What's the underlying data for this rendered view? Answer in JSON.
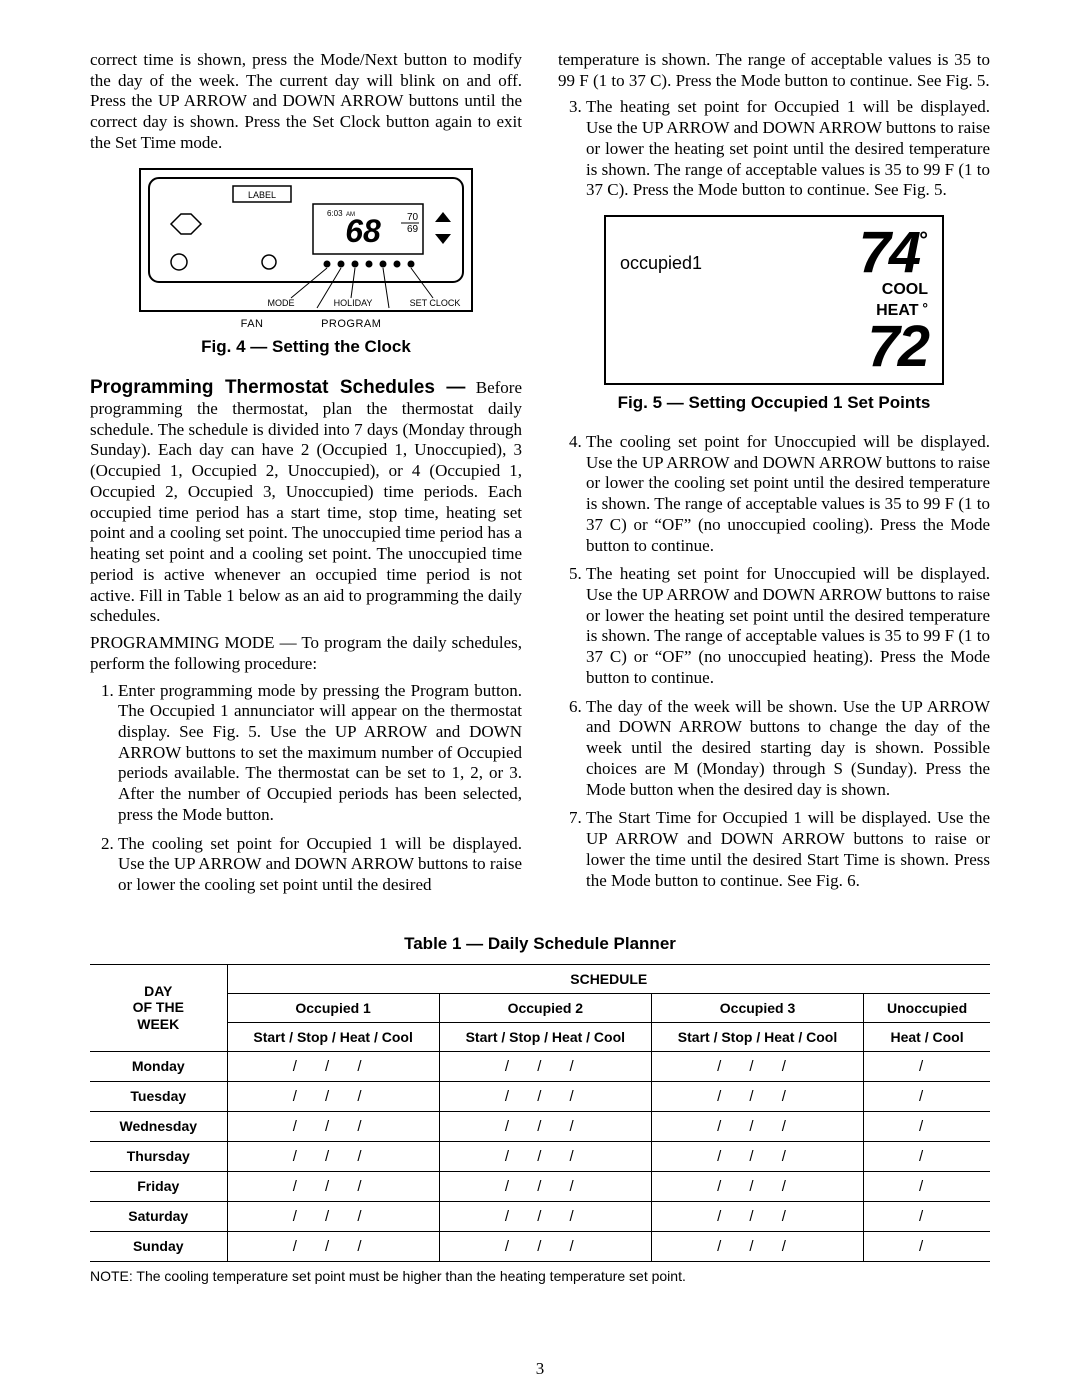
{
  "left_col": {
    "intro_para": "correct time is shown, press the Mode/Next button to modify the day of the week. The current day will blink on and off. Press the UP ARROW and DOWN ARROW buttons until the correct day is shown. Press the Set Clock button again to exit the Set Time mode.",
    "fig4": {
      "label_text": "LABEL",
      "time_text": "6:03",
      "am_text": "AM",
      "temp_text": "68",
      "temp_small": "70\n69",
      "btn_labels": [
        "MODE",
        "HOLIDAY",
        "SET CLOCK"
      ],
      "btn_labels2": [
        "FAN",
        "PROGRAM"
      ],
      "caption": "Fig. 4 — Setting the Clock"
    },
    "prog_head": "Programming Thermostat Schedules —",
    "prog_para": "Before programming the thermostat, plan the thermostat daily schedule. The schedule is divided into 7 days (Monday through Sunday). Each day can have 2 (Occupied 1, Unoccupied), 3 (Occupied 1, Occupied 2, Unoccupied), or 4 (Occupied 1, Occupied 2, Occupied 3, Unoccupied) time periods. Each occupied time period has a start time, stop time, heating set point and a cooling set point. The unoccupied time period has a heating set point and a cooling set point. The unoccupied time period is active whenever an occupied time period is not active. Fill in Table 1 below as an aid to programming the daily schedules.",
    "progmode_para": "PROGRAMMING MODE — To program the daily schedules, perform the following procedure:",
    "step1": "Enter programming mode by pressing the Program button. The Occupied 1 annunciator will appear on the thermostat display. See Fig. 5. Use the UP ARROW and DOWN ARROW buttons to set the maximum number of Occupied periods available. The thermostat can be set to 1, 2, or 3. After the number of Occupied periods has been selected, press the Mode button.",
    "step2": "The cooling set point for Occupied 1 will be displayed. Use the UP ARROW and DOWN ARROW buttons to raise or lower the cooling set point until the desired"
  },
  "right_col": {
    "cont_para": "temperature is shown. The range of acceptable values is 35 to 99 F (1 to 37 C). Press the Mode button to continue. See Fig. 5.",
    "step3": "The heating set point for Occupied 1 will be displayed. Use the UP ARROW and DOWN ARROW buttons to raise or lower the heating set point until the desired temperature is shown. The range of acceptable values is 35 to 99 F (1 to 37 C). Press the Mode button to continue. See Fig. 5.",
    "fig5": {
      "occ_label": "occupied1",
      "cool_temp": "74",
      "cool_label": "Cool",
      "heat_temp": "72",
      "heat_label": "Heat",
      "caption": "Fig. 5 — Setting Occupied 1 Set Points"
    },
    "step4": "The cooling set point for Unoccupied will be displayed. Use the UP ARROW and DOWN ARROW buttons to raise or lower the cooling set point until the desired temperature is shown. The range of acceptable values is 35 to 99 F (1 to 37 C) or “OF” (no unoccupied cooling). Press the Mode button to continue.",
    "step5": "The heating set point for Unoccupied will be displayed. Use the UP ARROW and DOWN ARROW buttons to raise or lower the heating set point until the desired temperature is shown. The range of acceptable values is 35 to 99 F (1 to 37 C) or “OF” (no unoccupied heating). Press the Mode button to continue.",
    "step6": "The day of the week will be shown. Use the UP ARROW and DOWN ARROW buttons to change the day of the week until the desired starting day is shown. Possible choices are M (Monday) through S (Sunday). Press the Mode button when the desired day is shown.",
    "step7": "The Start Time for Occupied 1 will be displayed. Use the UP ARROW and DOWN ARROW buttons to raise or lower the time until the desired Start Time is shown. Press the Mode button to continue. See Fig. 6."
  },
  "table": {
    "title": "Table 1 — Daily Schedule Planner",
    "schedule_hdr": "SCHEDULE",
    "dayhdr": "DAY\nOF THE\nWEEK",
    "cols": [
      "Occupied 1",
      "Occupied 2",
      "Occupied 3",
      "Unoccupied"
    ],
    "sub_occ": "Start / Stop / Heat / Cool",
    "sub_unocc": "Heat / Cool",
    "days": [
      "Monday",
      "Tuesday",
      "Wednesday",
      "Thursday",
      "Friday",
      "Saturday",
      "Sunday"
    ],
    "cell_slashes3": "/  /  /",
    "cell_slashes1": "/",
    "note": "NOTE: The cooling temperature set point must be higher than the heating temperature set point."
  },
  "page_number": "3"
}
